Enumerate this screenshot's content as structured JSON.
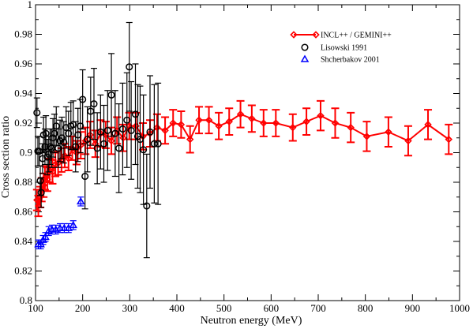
{
  "chart_data": {
    "type": "scatter",
    "xlabel": "Neutron energy (MeV)",
    "ylabel": "Cross section ratio",
    "xlim": [
      100,
      1000
    ],
    "ylim": [
      0.8,
      1.0
    ],
    "x_ticks": [
      100,
      200,
      300,
      400,
      500,
      600,
      700,
      800,
      900,
      1000
    ],
    "x_tick_labels": [
      "100",
      "200",
      "300",
      "400",
      "500",
      "600",
      "700",
      "800",
      "900",
      "1000"
    ],
    "y_ticks": [
      0.8,
      0.82,
      0.84,
      0.86,
      0.88,
      0.9,
      0.92,
      0.94,
      0.96,
      0.98,
      1.0
    ],
    "y_tick_labels": [
      "0.8",
      "0.82",
      "0.84",
      "0.86",
      "0.88",
      "0.9",
      "0.92",
      "0.94",
      "0.96",
      "0.98",
      "1"
    ],
    "grid": false,
    "legend_position": "top-right",
    "series": [
      {
        "name": "INCL++ / GEMINI++",
        "color": "#ff0000",
        "marker": "diamond",
        "line": true,
        "points": [
          [
            103,
            0.868,
            0.007
          ],
          [
            106,
            0.864,
            0.007
          ],
          [
            110,
            0.87,
            0.007
          ],
          [
            113,
            0.875,
            0.008
          ],
          [
            117,
            0.878,
            0.008
          ],
          [
            120,
            0.883,
            0.008
          ],
          [
            125,
            0.882,
            0.008
          ],
          [
            130,
            0.888,
            0.008
          ],
          [
            136,
            0.887,
            0.008
          ],
          [
            142,
            0.892,
            0.008
          ],
          [
            148,
            0.893,
            0.008
          ],
          [
            155,
            0.895,
            0.008
          ],
          [
            162,
            0.898,
            0.008
          ],
          [
            170,
            0.896,
            0.008
          ],
          [
            178,
            0.903,
            0.008
          ],
          [
            187,
            0.9,
            0.008
          ],
          [
            196,
            0.905,
            0.009
          ],
          [
            206,
            0.908,
            0.009
          ],
          [
            216,
            0.912,
            0.009
          ],
          [
            227,
            0.906,
            0.009
          ],
          [
            238,
            0.913,
            0.009
          ],
          [
            249,
            0.912,
            0.009
          ],
          [
            261,
            0.908,
            0.009
          ],
          [
            273,
            0.915,
            0.009
          ],
          [
            286,
            0.91,
            0.009
          ],
          [
            299,
            0.918,
            0.009
          ],
          [
            313,
            0.918,
            0.009
          ],
          [
            328,
            0.911,
            0.009
          ],
          [
            343,
            0.913,
            0.009
          ],
          [
            358,
            0.917,
            0.009
          ],
          [
            375,
            0.915,
            0.009
          ],
          [
            392,
            0.92,
            0.009
          ],
          [
            409,
            0.919,
            0.009
          ],
          [
            428,
            0.909,
            0.009
          ],
          [
            447,
            0.922,
            0.009
          ],
          [
            468,
            0.922,
            0.009
          ],
          [
            489,
            0.918,
            0.009
          ],
          [
            511,
            0.921,
            0.009
          ],
          [
            535,
            0.926,
            0.009
          ],
          [
            559,
            0.923,
            0.009
          ],
          [
            584,
            0.92,
            0.009
          ],
          [
            610,
            0.92,
            0.009
          ],
          [
            646,
            0.917,
            0.009
          ],
          [
            675,
            0.921,
            0.009
          ],
          [
            705,
            0.925,
            0.01
          ],
          [
            736,
            0.92,
            0.01
          ],
          [
            769,
            0.917,
            0.01
          ],
          [
            803,
            0.911,
            0.01
          ],
          [
            849,
            0.914,
            0.01
          ],
          [
            891,
            0.908,
            0.01
          ],
          [
            933,
            0.919,
            0.01
          ],
          [
            977,
            0.909,
            0.01
          ]
        ]
      },
      {
        "name": "Lisowski 1991",
        "color": "#000000",
        "marker": "circle",
        "line": false,
        "points": [
          [
            103,
            0.927,
            0.01
          ],
          [
            105,
            0.901,
            0.01
          ],
          [
            108,
            0.901,
            0.01
          ],
          [
            110,
            0.881,
            0.01
          ],
          [
            112,
            0.873,
            0.01
          ],
          [
            115,
            0.896,
            0.01
          ],
          [
            117,
            0.912,
            0.012
          ],
          [
            120,
            0.904,
            0.012
          ],
          [
            122,
            0.913,
            0.012
          ],
          [
            125,
            0.897,
            0.012
          ],
          [
            128,
            0.899,
            0.012
          ],
          [
            131,
            0.904,
            0.012
          ],
          [
            134,
            0.903,
            0.013
          ],
          [
            137,
            0.91,
            0.013
          ],
          [
            140,
            0.913,
            0.013
          ],
          [
            144,
            0.918,
            0.013
          ],
          [
            148,
            0.903,
            0.013
          ],
          [
            152,
            0.908,
            0.014
          ],
          [
            156,
            0.91,
            0.014
          ],
          [
            160,
            0.907,
            0.014
          ],
          [
            165,
            0.917,
            0.014
          ],
          [
            170,
            0.913,
            0.015
          ],
          [
            175,
            0.918,
            0.016
          ],
          [
            180,
            0.919,
            0.016
          ],
          [
            185,
            0.904,
            0.017
          ],
          [
            190,
            0.912,
            0.018
          ],
          [
            195,
            0.918,
            0.018
          ],
          [
            200,
            0.936,
            0.02
          ],
          [
            205,
            0.884,
            0.022
          ],
          [
            210,
            0.909,
            0.022
          ],
          [
            217,
            0.928,
            0.023
          ],
          [
            224,
            0.933,
            0.024
          ],
          [
            231,
            0.903,
            0.024
          ],
          [
            238,
            0.914,
            0.025
          ],
          [
            245,
            0.906,
            0.026
          ],
          [
            253,
            0.915,
            0.027
          ],
          [
            261,
            0.939,
            0.028
          ],
          [
            269,
            0.913,
            0.029
          ],
          [
            277,
            0.903,
            0.03
          ],
          [
            285,
            0.916,
            0.031
          ],
          [
            294,
            0.922,
            0.032
          ],
          [
            299,
            0.958,
            0.03
          ],
          [
            303,
            0.915,
            0.033
          ],
          [
            312,
            0.926,
            0.034
          ],
          [
            317,
            0.911,
            0.035
          ],
          [
            322,
            0.909,
            0.036
          ],
          [
            329,
            0.902,
            0.037
          ],
          [
            336,
            0.864,
            0.035
          ],
          [
            343,
            0.914,
            0.038
          ],
          [
            352,
            0.906,
            0.04
          ],
          [
            360,
            0.906,
            0.041
          ]
        ]
      },
      {
        "name": "Shcherbakov 2001",
        "color": "#0000ff",
        "marker": "triangle",
        "line": false,
        "points": [
          [
            106,
            0.838,
            0.003
          ],
          [
            111,
            0.838,
            0.003
          ],
          [
            116,
            0.841,
            0.003
          ],
          [
            121,
            0.843,
            0.003
          ],
          [
            128,
            0.847,
            0.003
          ],
          [
            135,
            0.848,
            0.003
          ],
          [
            143,
            0.848,
            0.003
          ],
          [
            152,
            0.849,
            0.003
          ],
          [
            161,
            0.849,
            0.003
          ],
          [
            170,
            0.849,
            0.003
          ],
          [
            180,
            0.851,
            0.003
          ],
          [
            196,
            0.867,
            0.003
          ]
        ]
      }
    ]
  }
}
